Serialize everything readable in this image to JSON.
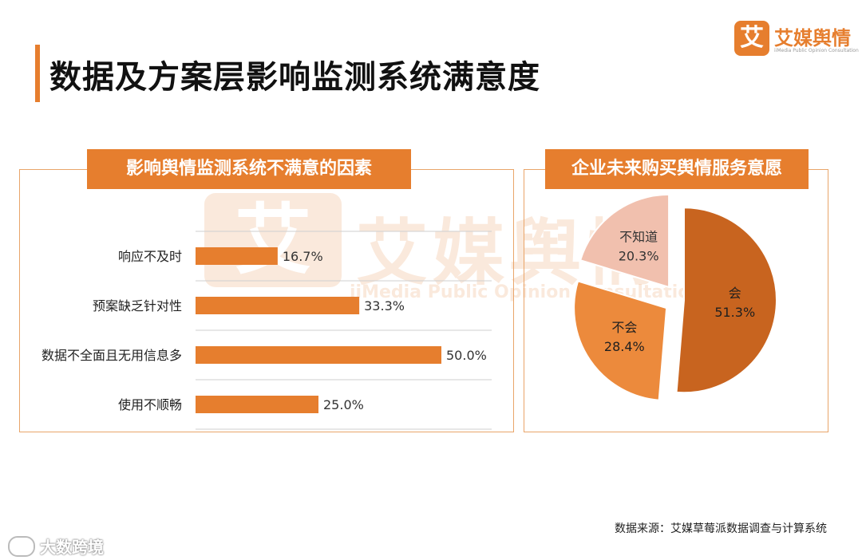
{
  "page": {
    "title": "数据及方案层影响监测系统满意度"
  },
  "brand": {
    "mark": "艾",
    "name": "艾媒舆情",
    "subtitle": "iiMedia Public Opinion Consultation"
  },
  "watermark": {
    "mark": "艾",
    "name": "艾媒舆情",
    "subtitle": "iiMedia Public Opinion Consultation"
  },
  "source": "数据来源：艾媒草莓派数据调查与计算系统",
  "footer": {
    "text": "大数跨境",
    "icon": "weibo-icon"
  },
  "colors": {
    "accent": "#e67e2e",
    "bar": "#e67e2e",
    "pie_yes": "#c8641f",
    "pie_no": "#ec8a3c",
    "pie_unknown": "#f1c0ae"
  },
  "chart_data": [
    {
      "type": "bar",
      "orientation": "horizontal",
      "title": "影响舆情监测系统不满意的因素",
      "categories": [
        "响应不及时",
        "预案缺乏针对性",
        "数据不全面且无用信息多",
        "使用不顺畅"
      ],
      "values": [
        16.7,
        33.3,
        50.0,
        25.0
      ],
      "value_labels": [
        "16.7%",
        "33.3%",
        "50.0%",
        "25.0%"
      ],
      "xlim": [
        0,
        50
      ],
      "grid": true
    },
    {
      "type": "pie",
      "title": "企业未来购买舆情服务意愿",
      "labels": [
        "会",
        "不会",
        "不知道"
      ],
      "values": [
        51.3,
        28.4,
        20.3
      ],
      "value_labels": [
        "51.3%",
        "28.4%",
        "20.3%"
      ],
      "exploded": true
    }
  ]
}
